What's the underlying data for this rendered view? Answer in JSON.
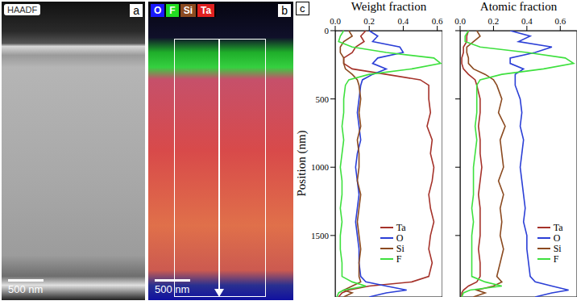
{
  "panels": {
    "a": {
      "letter": "a",
      "badge": "HAADF",
      "scale_bar": "500 nm"
    },
    "b": {
      "letter": "b",
      "scale_bar": "500 nm",
      "legend": [
        {
          "label": "O",
          "color": "#1a1aff"
        },
        {
          "label": "F",
          "color": "#22dd22"
        },
        {
          "label": "Si",
          "color": "#8b4a20"
        },
        {
          "label": "Ta",
          "color": "#e02020"
        }
      ]
    },
    "c": {
      "letter": "c"
    }
  },
  "chart_data": [
    {
      "type": "line",
      "title": "Weight fraction",
      "ylabel": "Position (nm)",
      "legend": "lower right",
      "xlim": [
        0,
        0.63
      ],
      "xticks": [
        {
          "value": 0,
          "label": "0.0"
        },
        0.2,
        0.4,
        0.6
      ],
      "ylim": [
        0,
        1950
      ],
      "yticks": [
        0,
        500,
        1000,
        1500
      ],
      "y": [
        0,
        40,
        80,
        120,
        160,
        200,
        240,
        280,
        320,
        360,
        400,
        500,
        600,
        700,
        800,
        900,
        1000,
        1100,
        1200,
        1300,
        1400,
        1500,
        1600,
        1700,
        1800,
        1840,
        1870,
        1900,
        1920,
        1950
      ],
      "series": [
        {
          "name": "Ta",
          "color": "#a5322a",
          "values": [
            0.18,
            0.15,
            0.17,
            0.12,
            0.1,
            0.05,
            0.05,
            0.1,
            0.3,
            0.5,
            0.55,
            0.55,
            0.56,
            0.54,
            0.57,
            0.56,
            0.58,
            0.57,
            0.55,
            0.56,
            0.58,
            0.56,
            0.55,
            0.57,
            0.55,
            0.45,
            0.2,
            0.08,
            0.04,
            0.02
          ]
        },
        {
          "name": "O",
          "color": "#2b3fd6",
          "values": [
            0.2,
            0.25,
            0.22,
            0.38,
            0.4,
            0.25,
            0.22,
            0.3,
            0.22,
            0.16,
            0.15,
            0.14,
            0.13,
            0.14,
            0.15,
            0.13,
            0.12,
            0.13,
            0.14,
            0.13,
            0.12,
            0.13,
            0.14,
            0.14,
            0.15,
            0.18,
            0.3,
            0.42,
            0.3,
            0.2
          ]
        },
        {
          "name": "Si",
          "color": "#8b4a20",
          "values": [
            0.08,
            0.1,
            0.05,
            0.03,
            0.03,
            0.05,
            0.05,
            0.06,
            0.1,
            0.13,
            0.14,
            0.15,
            0.14,
            0.15,
            0.13,
            0.14,
            0.14,
            0.13,
            0.15,
            0.14,
            0.13,
            0.14,
            0.15,
            0.14,
            0.14,
            0.15,
            0.1,
            0.05,
            0.1,
            0.05
          ]
        },
        {
          "name": "F",
          "color": "#3ee03e",
          "values": [
            0.05,
            0.03,
            0.02,
            0.1,
            0.3,
            0.58,
            0.62,
            0.45,
            0.2,
            0.08,
            0.06,
            0.05,
            0.05,
            0.04,
            0.05,
            0.04,
            0.03,
            0.04,
            0.04,
            0.03,
            0.04,
            0.03,
            0.03,
            0.04,
            0.04,
            0.1,
            0.18,
            0.05,
            0.02,
            0.01
          ]
        }
      ]
    },
    {
      "type": "line",
      "title": "Atomic fraction",
      "legend": "lower right",
      "tick_labels": "x",
      "xlim": [
        0,
        0.7
      ],
      "xticks": [
        {
          "value": 0,
          "label": "0.0"
        },
        0.2,
        0.4,
        0.6
      ],
      "ylim": [
        0,
        1950
      ],
      "yticks": [
        0,
        500,
        1000,
        1500
      ],
      "y": [
        0,
        40,
        80,
        120,
        160,
        200,
        240,
        280,
        320,
        360,
        400,
        500,
        600,
        700,
        800,
        900,
        1000,
        1100,
        1200,
        1300,
        1400,
        1500,
        1600,
        1700,
        1800,
        1840,
        1870,
        1900,
        1920,
        1950
      ],
      "series": [
        {
          "name": "Ta",
          "color": "#a5322a",
          "values": [
            0.05,
            0.04,
            0.04,
            0.02,
            0.02,
            0.01,
            0.01,
            0.02,
            0.05,
            0.09,
            0.1,
            0.12,
            0.12,
            0.11,
            0.12,
            0.12,
            0.13,
            0.12,
            0.11,
            0.12,
            0.12,
            0.12,
            0.11,
            0.12,
            0.12,
            0.1,
            0.05,
            0.02,
            0.01,
            0.01
          ]
        },
        {
          "name": "O",
          "color": "#2b3fd6",
          "values": [
            0.3,
            0.42,
            0.35,
            0.55,
            0.45,
            0.3,
            0.3,
            0.38,
            0.33,
            0.33,
            0.33,
            0.36,
            0.37,
            0.36,
            0.38,
            0.37,
            0.36,
            0.37,
            0.38,
            0.39,
            0.38,
            0.4,
            0.4,
            0.41,
            0.42,
            0.45,
            0.55,
            0.65,
            0.55,
            0.45
          ]
        },
        {
          "name": "Si",
          "color": "#8b4a20",
          "values": [
            0.1,
            0.12,
            0.08,
            0.04,
            0.04,
            0.05,
            0.05,
            0.08,
            0.15,
            0.2,
            0.22,
            0.25,
            0.23,
            0.27,
            0.24,
            0.25,
            0.26,
            0.23,
            0.26,
            0.24,
            0.25,
            0.24,
            0.26,
            0.24,
            0.22,
            0.25,
            0.2,
            0.1,
            0.15,
            0.08
          ]
        },
        {
          "name": "F",
          "color": "#3ee03e",
          "values": [
            0.05,
            0.03,
            0.03,
            0.12,
            0.4,
            0.63,
            0.68,
            0.5,
            0.25,
            0.12,
            0.1,
            0.1,
            0.1,
            0.09,
            0.1,
            0.09,
            0.08,
            0.08,
            0.08,
            0.07,
            0.08,
            0.07,
            0.07,
            0.07,
            0.07,
            0.15,
            0.25,
            0.06,
            0.02,
            0.01
          ]
        }
      ]
    }
  ]
}
